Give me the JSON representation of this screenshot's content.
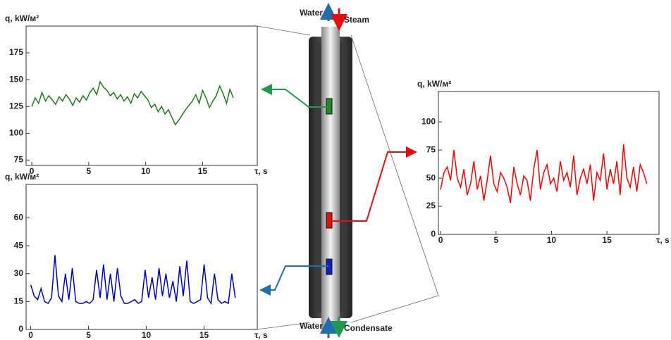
{
  "chart_data": [
    {
      "type": "line",
      "ylabel": "q, kW/м²",
      "xlabel": "τ, s",
      "color": "#1f7a1f",
      "xlim": [
        -0.5,
        19.8
      ],
      "xticks": [
        0,
        5,
        10,
        15
      ],
      "ylim": [
        70,
        200
      ],
      "yticks": [
        75,
        100,
        125,
        150,
        175
      ],
      "x": [
        0,
        0.3,
        0.6,
        0.9,
        1.2,
        1.5,
        1.8,
        2.1,
        2.4,
        2.7,
        3,
        3.3,
        3.6,
        3.9,
        4.2,
        4.5,
        4.8,
        5.1,
        5.4,
        5.7,
        6,
        6.3,
        6.6,
        6.9,
        7.2,
        7.5,
        7.8,
        8.1,
        8.4,
        8.7,
        9,
        9.3,
        9.6,
        9.9,
        10.2,
        10.5,
        10.8,
        11.1,
        11.4,
        11.7,
        12,
        12.3,
        12.6,
        12.9,
        13.2,
        13.5,
        13.8,
        14.1,
        14.4,
        14.7,
        15,
        15.3,
        15.6,
        15.9,
        16.2,
        16.5,
        16.8,
        17.1,
        17.4,
        17.7
      ],
      "values": [
        125,
        133,
        128,
        138,
        130,
        135,
        131,
        127,
        134,
        130,
        136,
        132,
        126,
        133,
        129,
        135,
        131,
        138,
        142,
        136,
        148,
        143,
        140,
        135,
        138,
        132,
        136,
        130,
        134,
        128,
        137,
        133,
        139,
        135,
        131,
        124,
        127,
        120,
        125,
        118,
        122,
        115,
        108,
        112,
        117,
        122,
        126,
        130,
        136,
        128,
        140,
        133,
        124,
        130,
        135,
        144,
        137,
        128,
        141,
        133
      ]
    },
    {
      "type": "line",
      "ylabel": "q, kW/м²",
      "xlabel": "τ, s",
      "color": "#ff0000",
      "xlim": [
        -0.2,
        19.7
      ],
      "xticks": [
        0,
        5,
        10,
        15
      ],
      "ylim": [
        0,
        127
      ],
      "yticks": [
        0,
        25,
        50,
        75,
        100
      ],
      "x": [
        0,
        0.3,
        0.6,
        0.9,
        1.2,
        1.5,
        1.8,
        2.1,
        2.4,
        2.7,
        3,
        3.3,
        3.6,
        3.9,
        4.2,
        4.5,
        4.8,
        5.1,
        5.4,
        5.7,
        6,
        6.3,
        6.6,
        6.9,
        7.2,
        7.5,
        7.8,
        8.1,
        8.4,
        8.7,
        9,
        9.3,
        9.6,
        9.9,
        10.2,
        10.5,
        10.8,
        11.1,
        11.4,
        11.7,
        12,
        12.3,
        12.6,
        12.9,
        13.2,
        13.5,
        13.8,
        14.1,
        14.4,
        14.7,
        15,
        15.3,
        15.6,
        15.9,
        16.2,
        16.5,
        16.8,
        17.1,
        17.4,
        17.7,
        18,
        18.3,
        18.6
      ],
      "values": [
        40,
        55,
        60,
        48,
        75,
        50,
        42,
        58,
        35,
        45,
        65,
        40,
        52,
        30,
        48,
        70,
        45,
        38,
        55,
        50,
        42,
        28,
        60,
        45,
        35,
        52,
        48,
        30,
        58,
        75,
        40,
        55,
        62,
        45,
        50,
        38,
        65,
        48,
        55,
        42,
        70,
        35,
        50,
        58,
        45,
        62,
        30,
        55,
        48,
        72,
        40,
        58,
        45,
        65,
        35,
        80,
        50,
        42,
        60,
        38,
        62,
        55,
        45
      ]
    },
    {
      "type": "line",
      "ylabel": "q, kW/м²",
      "xlabel": "τ, s",
      "color": "#0000cc",
      "xlim": [
        -0.4,
        19.6
      ],
      "xticks": [
        0,
        5,
        10,
        15
      ],
      "ylim": [
        0,
        78
      ],
      "yticks": [
        0,
        15,
        30,
        45,
        60
      ],
      "x": [
        0,
        0.3,
        0.6,
        0.9,
        1.2,
        1.5,
        1.8,
        2.1,
        2.4,
        2.7,
        3,
        3.3,
        3.6,
        3.9,
        4.2,
        4.5,
        4.8,
        5.1,
        5.4,
        5.7,
        6,
        6.3,
        6.6,
        6.9,
        7.2,
        7.5,
        7.8,
        8.1,
        8.4,
        8.7,
        9,
        9.3,
        9.6,
        9.9,
        10.2,
        10.5,
        10.8,
        11.1,
        11.4,
        11.7,
        12,
        12.3,
        12.6,
        12.9,
        13.2,
        13.5,
        13.8,
        14.1,
        14.4,
        14.7,
        15,
        15.3,
        15.6,
        15.9,
        16.2,
        16.5,
        16.8,
        17.1,
        17.4,
        17.7
      ],
      "values": [
        24,
        18,
        16,
        22,
        15,
        14,
        17,
        40,
        18,
        15,
        30,
        16,
        33,
        15,
        14,
        14,
        15,
        14,
        16,
        32,
        17,
        35,
        16,
        30,
        15,
        33,
        18,
        14,
        14,
        15,
        16,
        14,
        15,
        32,
        17,
        28,
        16,
        33,
        18,
        30,
        17,
        26,
        15,
        34,
        18,
        37,
        15,
        14,
        15,
        16,
        35,
        17,
        14,
        30,
        16,
        14,
        15,
        14,
        30,
        17
      ]
    }
  ],
  "diagram": {
    "top_left": "Water",
    "top_right": "Steam",
    "bottom_left": "Water",
    "bottom_right": "Condensate"
  }
}
